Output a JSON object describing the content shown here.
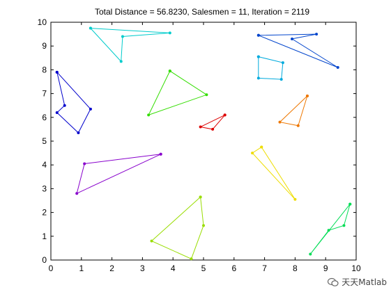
{
  "chart_data": {
    "type": "line",
    "title": "Total Distance = 56.8230, Salesmen = 11, Iteration = 2119",
    "xlabel": "",
    "ylabel": "",
    "xlim": [
      0,
      10
    ],
    "ylim": [
      0,
      10
    ],
    "xticks": [
      "0",
      "1",
      "2",
      "3",
      "4",
      "5",
      "6",
      "7",
      "8",
      "9",
      "10"
    ],
    "yticks": [
      "0",
      "1",
      "2",
      "3",
      "4",
      "5",
      "6",
      "7",
      "8",
      "9",
      "10"
    ],
    "grid": false,
    "series": [
      {
        "color": "#0000cc",
        "points": [
          [
            0.2,
            7.9
          ],
          [
            1.3,
            6.35
          ],
          [
            0.9,
            5.35
          ],
          [
            0.2,
            6.2
          ],
          [
            0.45,
            6.5
          ],
          [
            0.2,
            7.9
          ]
        ]
      },
      {
        "color": "#8800cc",
        "points": [
          [
            3.6,
            4.45
          ],
          [
            1.1,
            4.05
          ],
          [
            0.85,
            2.8
          ],
          [
            3.6,
            4.45
          ]
        ]
      },
      {
        "color": "#00cccc",
        "points": [
          [
            1.3,
            9.75
          ],
          [
            3.9,
            9.55
          ],
          [
            2.35,
            9.4
          ],
          [
            2.3,
            8.35
          ],
          [
            1.3,
            9.75
          ]
        ]
      },
      {
        "color": "#33dd00",
        "points": [
          [
            3.9,
            7.95
          ],
          [
            5.1,
            6.95
          ],
          [
            3.2,
            6.1
          ],
          [
            3.9,
            7.95
          ]
        ]
      },
      {
        "color": "#dd0000",
        "points": [
          [
            5.7,
            6.1
          ],
          [
            5.3,
            5.5
          ],
          [
            4.9,
            5.6
          ],
          [
            5.7,
            6.1
          ]
        ]
      },
      {
        "color": "#0044cc",
        "points": [
          [
            6.8,
            9.45
          ],
          [
            8.7,
            9.5
          ],
          [
            7.9,
            9.3
          ],
          [
            9.4,
            8.1
          ],
          [
            6.8,
            9.45
          ]
        ]
      },
      {
        "color": "#00aadd",
        "points": [
          [
            6.8,
            8.55
          ],
          [
            7.6,
            8.3
          ],
          [
            7.55,
            7.6
          ],
          [
            6.8,
            7.65
          ],
          [
            6.8,
            8.55
          ]
        ]
      },
      {
        "color": "#ee7700",
        "points": [
          [
            8.4,
            6.9
          ],
          [
            7.5,
            5.8
          ],
          [
            8.1,
            5.65
          ],
          [
            8.4,
            6.9
          ]
        ]
      },
      {
        "color": "#eedd00",
        "points": [
          [
            6.9,
            4.75
          ],
          [
            8.0,
            2.55
          ],
          [
            6.6,
            4.5
          ],
          [
            6.9,
            4.75
          ]
        ]
      },
      {
        "color": "#99dd00",
        "points": [
          [
            4.9,
            2.65
          ],
          [
            5.0,
            1.45
          ],
          [
            4.6,
            0.05
          ],
          [
            3.3,
            0.8
          ],
          [
            4.9,
            2.65
          ]
        ]
      },
      {
        "color": "#00dd55",
        "points": [
          [
            9.8,
            2.35
          ],
          [
            9.6,
            1.45
          ],
          [
            9.1,
            1.25
          ],
          [
            8.5,
            0.25
          ],
          [
            9.8,
            2.35
          ]
        ]
      }
    ]
  },
  "watermark": {
    "text": "天天Matlab"
  }
}
